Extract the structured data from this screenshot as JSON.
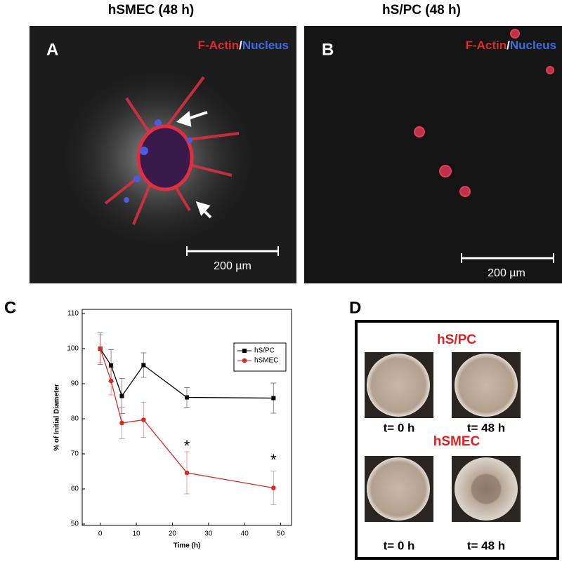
{
  "panel_a": {
    "title": "hSMEC (48 h)",
    "label": "A",
    "stain_actin": "F-Actin",
    "stain_sep": "/",
    "stain_nucleus": "Nucleus",
    "scale": "200 µm"
  },
  "panel_b": {
    "title": "hS/PC (48 h)",
    "label": "B",
    "stain_actin": "F-Actin",
    "stain_sep": "/",
    "stain_nucleus": "Nucleus",
    "scale": "200 µm"
  },
  "panel_c": {
    "label": "C"
  },
  "chart_data": {
    "type": "line",
    "xlabel": "Time (h)",
    "ylabel": "% of Initial Diameter",
    "x": [
      0,
      3,
      6,
      12,
      24,
      48
    ],
    "series": [
      {
        "name": "hS/PC",
        "color": "#000000",
        "marker": "square",
        "values": [
          100,
          95.2,
          86.5,
          95.3,
          86.1,
          85.9
        ],
        "errors": [
          4.5,
          4.5,
          5,
          3.5,
          2.8,
          4.3
        ]
      },
      {
        "name": "hSMEC",
        "color": "#d42a2a",
        "marker": "circle",
        "values": [
          100,
          90.8,
          78.8,
          79.7,
          64.6,
          60.3
        ],
        "errors": [
          4,
          4,
          4.5,
          5,
          6,
          4.8
        ]
      }
    ],
    "annotations": [
      {
        "text": "*",
        "x": 24,
        "y": 72
      },
      {
        "text": "*",
        "x": 48,
        "y": 68
      }
    ],
    "xlim": [
      -5,
      53
    ],
    "ylim": [
      49.6,
      111.2
    ],
    "xticks": [
      0,
      10,
      20,
      30,
      40,
      50
    ],
    "yticks": [
      50,
      60,
      70,
      80,
      90,
      100,
      110
    ],
    "legend": "upper right"
  },
  "panel_d": {
    "label": "D",
    "top_group": "hS/PC",
    "bottom_group": "hSMEC",
    "captions": [
      "t= 0 h",
      "t= 48 h",
      "t= 0 h",
      "t= 48 h"
    ]
  }
}
